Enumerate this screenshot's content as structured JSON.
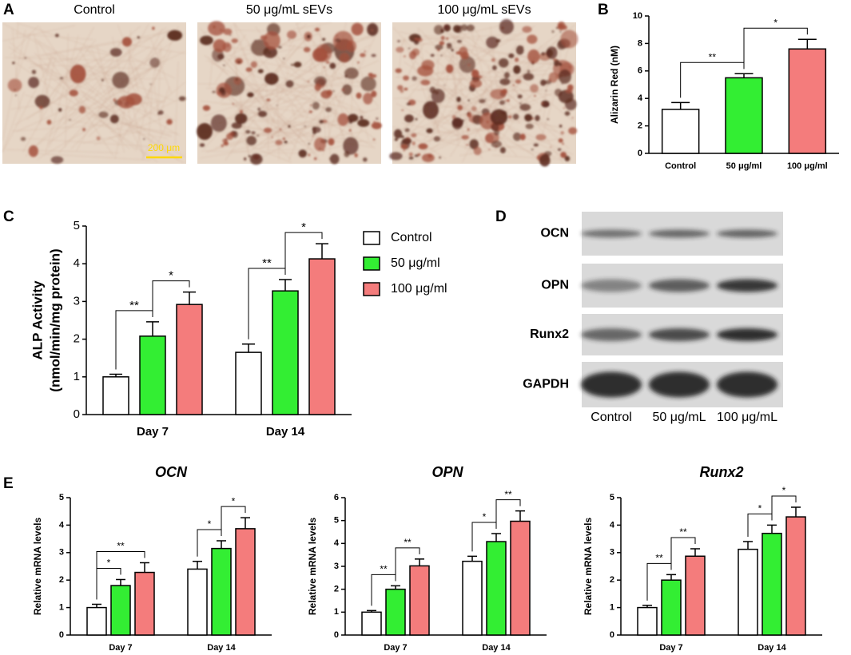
{
  "panel_a": {
    "letter": "A",
    "captions": [
      "Control",
      "50 μg/mL sEVs",
      "100 μg/mL sEVs"
    ],
    "scale_bar": "200 μm"
  },
  "panel_d": {
    "letter": "D",
    "rows": [
      "OCN",
      "OPN",
      "Runx2",
      "GAPDH"
    ],
    "lanes": [
      "Control",
      "50 μg/mL",
      "100 μg/mL"
    ]
  },
  "chart_data": [
    {
      "type": "bar",
      "panel": "B",
      "ylabel": "Alizarin Red (nM)",
      "categories": [
        "Control",
        "50 μg/ml",
        "100 μg/ml"
      ],
      "values": [
        3.2,
        5.5,
        7.6
      ],
      "errors": [
        0.5,
        0.3,
        0.7
      ],
      "colors": [
        "#ffffff",
        "#33ee33",
        "#f47c7c"
      ],
      "ylim": [
        0,
        10
      ],
      "yticks": [
        0,
        2,
        4,
        6,
        8,
        10
      ],
      "brackets": [
        {
          "text": "**",
          "from": 0,
          "to": 1
        },
        {
          "text": "*",
          "from": 1,
          "to": 2
        }
      ]
    },
    {
      "type": "grouped_bar",
      "panel": "C",
      "ylabel": [
        "ALP Activity",
        "(nmol/min/mg protein)"
      ],
      "categories": [
        "Day 7",
        "Day 14"
      ],
      "series": [
        {
          "name": "Control",
          "color": "#ffffff",
          "values": [
            1.0,
            1.65
          ],
          "errors": [
            0.07,
            0.22
          ]
        },
        {
          "name": "50 μg/ml",
          "color": "#33ee33",
          "values": [
            2.08,
            3.28
          ],
          "errors": [
            0.38,
            0.3
          ]
        },
        {
          "name": "100 μg/ml",
          "color": "#f47c7c",
          "values": [
            2.92,
            4.13
          ],
          "errors": [
            0.33,
            0.4
          ]
        }
      ],
      "ylim": [
        0,
        5
      ],
      "yticks": [
        0,
        1,
        2,
        3,
        4,
        5
      ],
      "legend": "right",
      "brackets": [
        {
          "text": "**",
          "category": 0,
          "from": 0,
          "to": 1
        },
        {
          "text": "*",
          "category": 0,
          "from": 1,
          "to": 2
        },
        {
          "text": "**",
          "category": 1,
          "from": 0,
          "to": 1
        },
        {
          "text": "*",
          "category": 1,
          "from": 1,
          "to": 2
        }
      ]
    },
    {
      "type": "grouped_bar",
      "panel": "E",
      "title": "OCN",
      "ylabel": "Relative mRNA levels",
      "categories": [
        "Day 7",
        "Day 14"
      ],
      "series": [
        {
          "color": "#ffffff",
          "values": [
            1.0,
            2.4
          ],
          "errors": [
            0.12,
            0.28
          ]
        },
        {
          "color": "#33ee33",
          "values": [
            1.8,
            3.15
          ],
          "errors": [
            0.22,
            0.28
          ]
        },
        {
          "color": "#f47c7c",
          "values": [
            2.28,
            3.87
          ],
          "errors": [
            0.35,
            0.4
          ]
        }
      ],
      "ylim": [
        0,
        5
      ],
      "yticks": [
        0,
        1,
        2,
        3,
        4,
        5
      ],
      "brackets": [
        {
          "text": "*",
          "category": 0,
          "from": 0,
          "to": 1
        },
        {
          "text": "**",
          "category": 0,
          "from": 0,
          "to": 2
        },
        {
          "text": "*",
          "category": 1,
          "from": 0,
          "to": 1
        },
        {
          "text": "*",
          "category": 1,
          "from": 1,
          "to": 2
        }
      ]
    },
    {
      "type": "grouped_bar",
      "title": "OPN",
      "ylabel": "Relative mRNA levels",
      "categories": [
        "Day 7",
        "Day 14"
      ],
      "series": [
        {
          "color": "#ffffff",
          "values": [
            1.0,
            3.22
          ],
          "errors": [
            0.07,
            0.22
          ]
        },
        {
          "color": "#33ee33",
          "values": [
            2.0,
            4.08
          ],
          "errors": [
            0.15,
            0.35
          ]
        },
        {
          "color": "#f47c7c",
          "values": [
            3.02,
            4.97
          ],
          "errors": [
            0.3,
            0.45
          ]
        }
      ],
      "ylim": [
        0,
        6
      ],
      "yticks": [
        0,
        1,
        2,
        3,
        4,
        5,
        6
      ],
      "brackets": [
        {
          "text": "**",
          "category": 0,
          "from": 0,
          "to": 1
        },
        {
          "text": "**",
          "category": 0,
          "from": 1,
          "to": 2
        },
        {
          "text": "*",
          "category": 1,
          "from": 0,
          "to": 1
        },
        {
          "text": "**",
          "category": 1,
          "from": 1,
          "to": 2
        }
      ]
    },
    {
      "type": "grouped_bar",
      "title": "Runx2",
      "ylabel": "Relative mRNA levels",
      "categories": [
        "Day 7",
        "Day 14"
      ],
      "series": [
        {
          "color": "#ffffff",
          "values": [
            1.0,
            3.12
          ],
          "errors": [
            0.08,
            0.28
          ]
        },
        {
          "color": "#33ee33",
          "values": [
            2.0,
            3.7
          ],
          "errors": [
            0.2,
            0.3
          ]
        },
        {
          "color": "#f47c7c",
          "values": [
            2.87,
            4.3
          ],
          "errors": [
            0.27,
            0.35
          ]
        }
      ],
      "ylim": [
        0,
        5
      ],
      "yticks": [
        0,
        1,
        2,
        3,
        4,
        5
      ],
      "brackets": [
        {
          "text": "**",
          "category": 0,
          "from": 0,
          "to": 1
        },
        {
          "text": "**",
          "category": 0,
          "from": 1,
          "to": 2
        },
        {
          "text": "*",
          "category": 1,
          "from": 0,
          "to": 1
        },
        {
          "text": "*",
          "category": 1,
          "from": 1,
          "to": 2
        }
      ]
    }
  ]
}
